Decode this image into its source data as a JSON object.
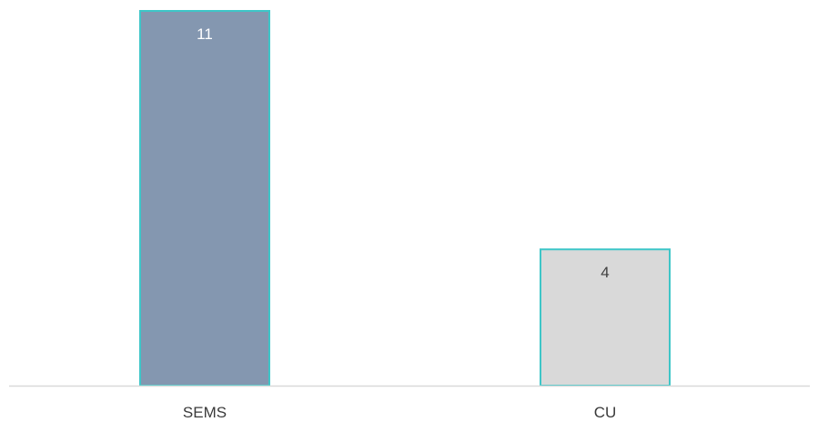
{
  "chart_data": {
    "type": "bar",
    "categories": [
      "SEMS",
      "CU"
    ],
    "values": [
      11,
      4
    ],
    "title": "",
    "xlabel": "",
    "ylabel": "",
    "ylim": [
      0,
      11.5
    ],
    "grid": false,
    "legend": "none",
    "bar_colors": [
      "#8497b0",
      "#d9d9d9"
    ],
    "bar_border_color": "#3ec6c8",
    "value_label_colors": [
      "#ffffff",
      "#404040"
    ],
    "value_label_position": "inside-top",
    "axis_line_color": "#d9d9d9"
  }
}
